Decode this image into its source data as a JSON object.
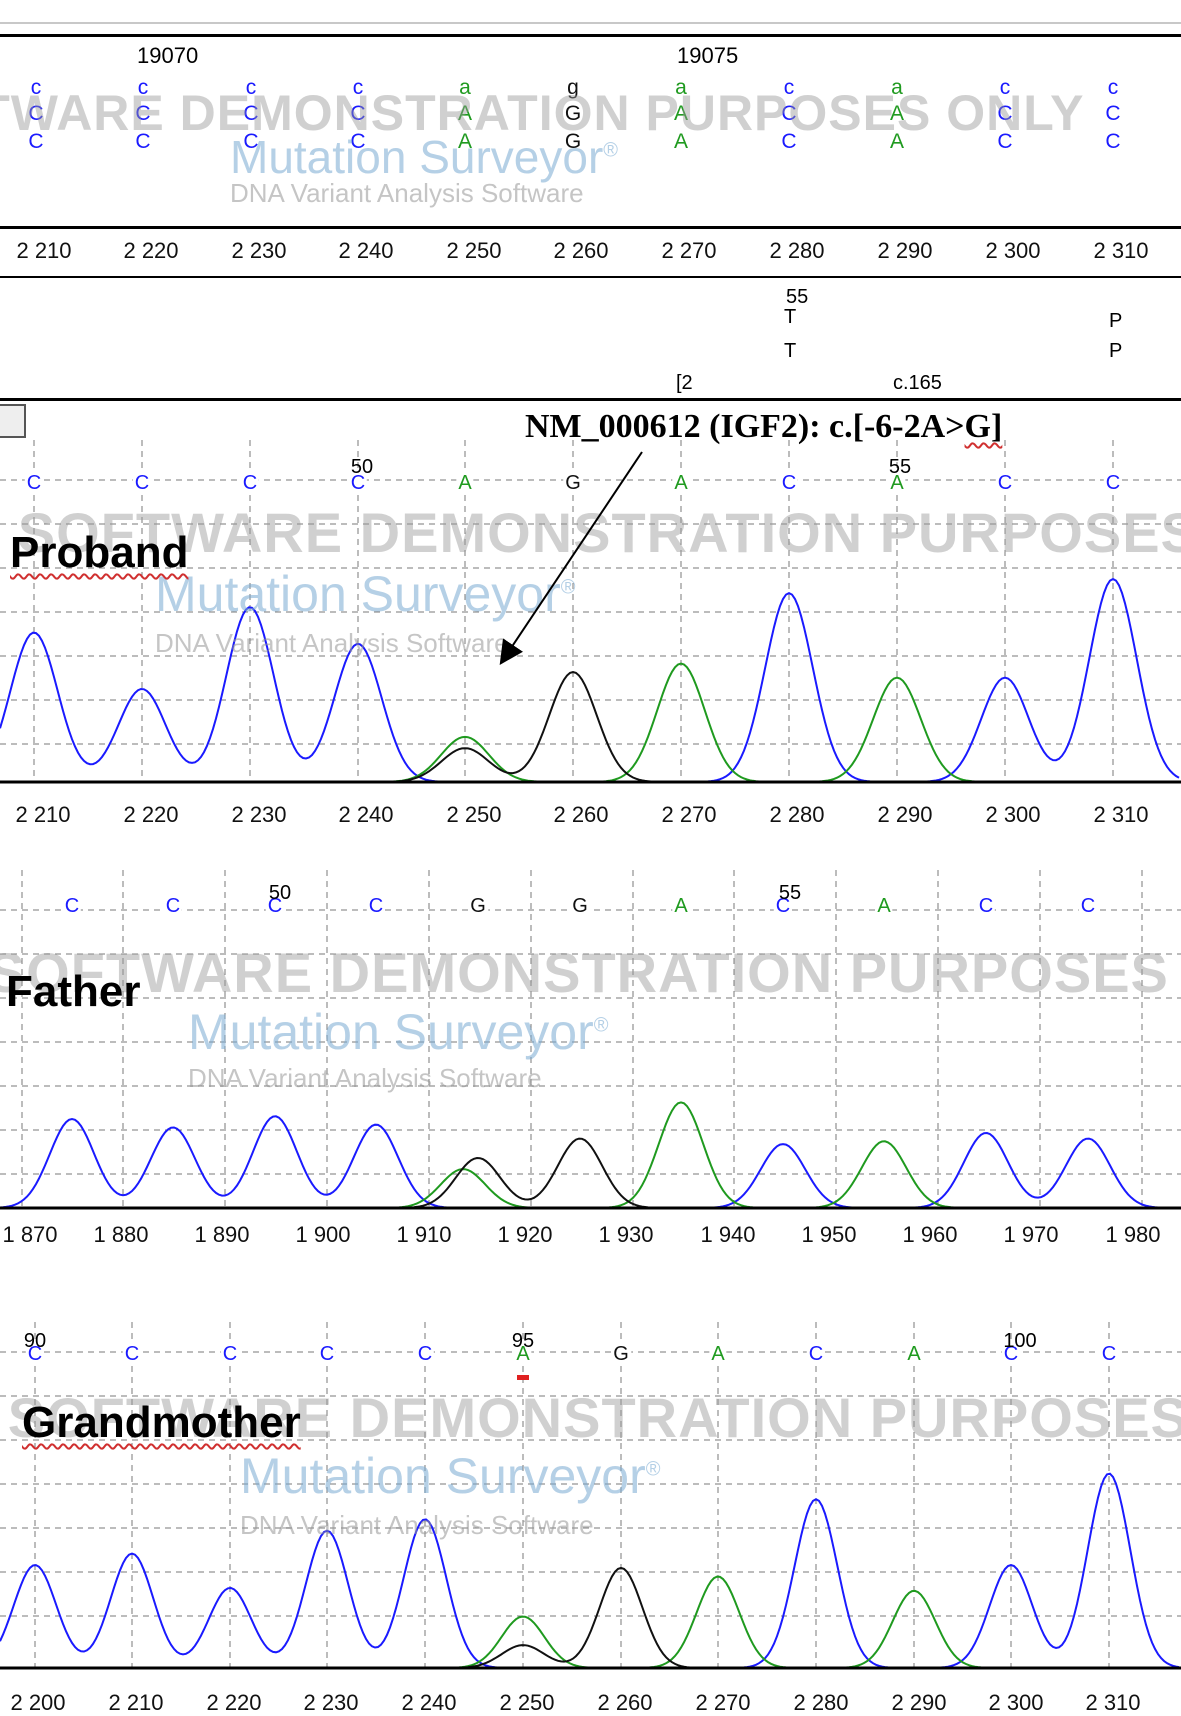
{
  "reference_panel": {
    "positions": [
      "19070",
      "19075"
    ],
    "ref_bases": [
      {
        "top": "c",
        "mid": "C",
        "bot": "C"
      },
      {
        "top": "c",
        "mid": "C",
        "bot": "C"
      },
      {
        "top": "c",
        "mid": "C",
        "bot": "C"
      },
      {
        "top": "c",
        "mid": "C",
        "bot": "C"
      },
      {
        "top": "a",
        "mid": "A",
        "bot": "A"
      },
      {
        "top": "g",
        "mid": "G",
        "bot": "G"
      },
      {
        "top": "a",
        "mid": "A",
        "bot": "A"
      },
      {
        "top": "c",
        "mid": "C",
        "bot": "C"
      },
      {
        "top": "a",
        "mid": "A",
        "bot": "A"
      },
      {
        "top": "c",
        "mid": "C",
        "bot": "C"
      },
      {
        "top": "c",
        "mid": "C",
        "bot": "C"
      }
    ],
    "axis_ticks": [
      "2 210",
      "2 220",
      "2 230",
      "2 240",
      "2 250",
      "2 260",
      "2 270",
      "2 280",
      "2 290",
      "2 300",
      "2 310"
    ]
  },
  "protein_panel": {
    "num_label": "55",
    "aa_col1_top": "T",
    "aa_col1_bot": "T",
    "aa_col2_top": "P",
    "aa_col2_bot": "P",
    "bracket_label": "[2",
    "cdna_label": "c.165"
  },
  "annotation": {
    "text_main": "NM_000612 (IGF2): c.[-6-2A>",
    "text_tail": "G]"
  },
  "watermark": {
    "banner": "FOR SOFTWARE DEMONSTRATION PURPOSES ONLY",
    "logo": "Mutation Surveyor",
    "reg": "®",
    "subtitle": "DNA Variant Analysis Software"
  },
  "samples": [
    {
      "label": "Proband",
      "pos_labels": [
        "50",
        "55"
      ],
      "bases": [
        "C",
        "C",
        "C",
        "C",
        "A",
        "G",
        "A",
        "C",
        "A",
        "C",
        "C"
      ],
      "axis_ticks": [
        "2 210",
        "2 220",
        "2 230",
        "2 240",
        "2 250",
        "2 260",
        "2 270",
        "2 280",
        "2 290",
        "2 300",
        "2 310"
      ]
    },
    {
      "label": "Father",
      "pos_labels": [
        "50",
        "55"
      ],
      "bases": [
        "C",
        "C",
        "C",
        "C",
        "G",
        "G",
        "A",
        "C",
        "A",
        "C",
        "C"
      ],
      "axis_ticks": [
        "1 870",
        "1 880",
        "1 890",
        "1 900",
        "1 910",
        "1 920",
        "1 930",
        "1 940",
        "1 950",
        "1 960",
        "1 970",
        "1 980"
      ]
    },
    {
      "label": "Grandmother",
      "pos_labels": [
        "90",
        "95",
        "100"
      ],
      "bases": [
        "C",
        "C",
        "C",
        "C",
        "C",
        "A",
        "G",
        "A",
        "C",
        "A",
        "C",
        "C"
      ],
      "axis_ticks": [
        "2 200",
        "2 210",
        "2 220",
        "2 230",
        "2 240",
        "2 250",
        "2 260",
        "2 270",
        "2 280",
        "2 290",
        "2 300",
        "2 310"
      ]
    }
  ],
  "colors": {
    "base_C": "#1a1aff",
    "base_A": "#1f9a1f",
    "base_G": "#111111",
    "base_T": "#e02020",
    "grid": "#7a7a7a",
    "logo": "#78aad2"
  }
}
